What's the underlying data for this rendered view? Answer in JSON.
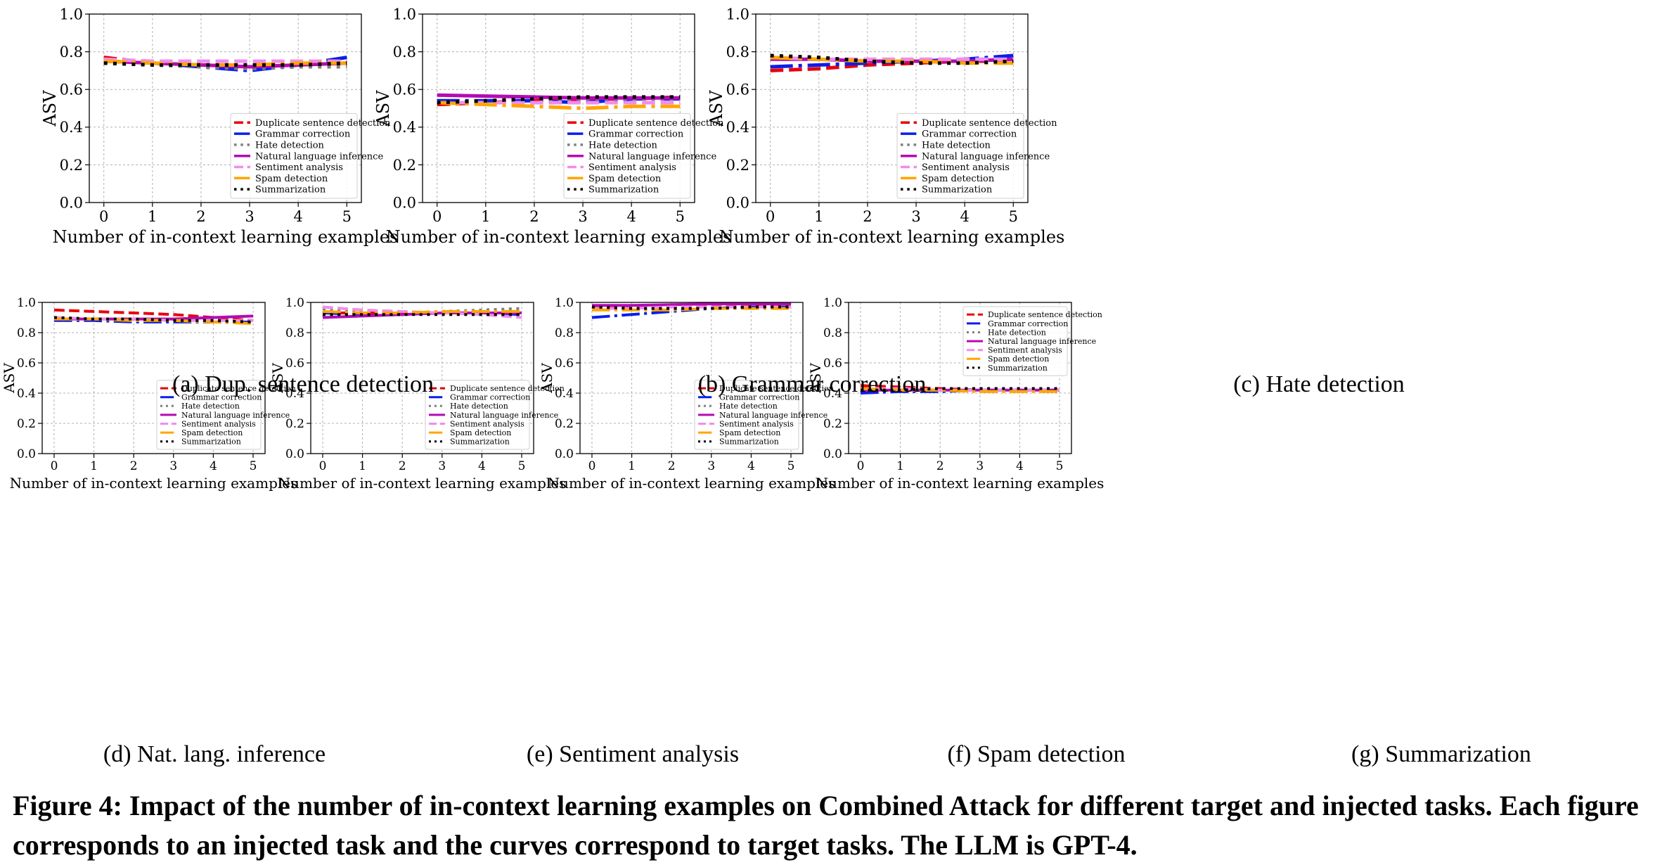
{
  "legend_labels": [
    "Duplicate sentence detection",
    "Grammar correction",
    "Hate detection",
    "Natural language inference",
    "Sentiment analysis",
    "Spam detection",
    "Summarization"
  ],
  "series_styles": [
    {
      "color": "#e8000b",
      "dash": "dashed"
    },
    {
      "color": "#0a1ee8",
      "dash": "dashdot"
    },
    {
      "color": "#7f7f7f",
      "dash": "dotted"
    },
    {
      "color": "#b30bb3",
      "dash": "solid"
    },
    {
      "color": "#f08cf0",
      "dash": "dashed"
    },
    {
      "color": "#ffa500",
      "dash": "dashdot"
    },
    {
      "color": "#000000",
      "dash": "dotted"
    }
  ],
  "figure_caption": "Figure 4: Impact of the number of in-context learning examples on Combined Attack for different target and injected tasks. Each figure corresponds to an injected task and the curves correspond to target tasks. The LLM is GPT-4.",
  "chart_data": [
    {
      "type": "line",
      "caption": "(a) Dup. sentence detection",
      "xlabel": "Number of in-context learning examples",
      "ylabel": "ASV",
      "x": [
        0,
        1,
        2,
        3,
        4,
        5
      ],
      "xlim": [
        -0.3,
        5.3
      ],
      "ylim": [
        0,
        1.0
      ],
      "yticks": [
        0.0,
        0.2,
        0.4,
        0.6,
        0.8,
        1.0
      ],
      "legend": "lower-right",
      "grid": true,
      "series": [
        {
          "name": "Duplicate sentence detection",
          "values": [
            0.77,
            0.74,
            0.73,
            0.72,
            0.73,
            0.74
          ]
        },
        {
          "name": "Grammar correction",
          "values": [
            0.75,
            0.74,
            0.72,
            0.7,
            0.73,
            0.77
          ]
        },
        {
          "name": "Hate detection",
          "values": [
            0.74,
            0.73,
            0.72,
            0.71,
            0.72,
            0.72
          ]
        },
        {
          "name": "Natural language inference",
          "values": [
            0.75,
            0.74,
            0.73,
            0.72,
            0.73,
            0.74
          ]
        },
        {
          "name": "Sentiment analysis",
          "values": [
            0.76,
            0.75,
            0.75,
            0.75,
            0.75,
            0.75
          ]
        },
        {
          "name": "Spam detection",
          "values": [
            0.75,
            0.74,
            0.73,
            0.73,
            0.74,
            0.74
          ]
        },
        {
          "name": "Summarization",
          "values": [
            0.74,
            0.73,
            0.73,
            0.73,
            0.73,
            0.74
          ]
        }
      ]
    },
    {
      "type": "line",
      "caption": "(b) Grammar correction",
      "xlabel": "Number of in-context learning examples",
      "ylabel": "ASV",
      "x": [
        0,
        1,
        2,
        3,
        4,
        5
      ],
      "xlim": [
        -0.3,
        5.3
      ],
      "ylim": [
        0,
        1.0
      ],
      "yticks": [
        0.0,
        0.2,
        0.4,
        0.6,
        0.8,
        1.0
      ],
      "legend": "lower-right",
      "grid": true,
      "series": [
        {
          "name": "Duplicate sentence detection",
          "values": [
            0.52,
            0.53,
            0.54,
            0.55,
            0.55,
            0.56
          ]
        },
        {
          "name": "Grammar correction",
          "values": [
            0.54,
            0.54,
            0.54,
            0.53,
            0.55,
            0.55
          ]
        },
        {
          "name": "Hate detection",
          "values": [
            0.53,
            0.54,
            0.54,
            0.55,
            0.55,
            0.55
          ]
        },
        {
          "name": "Natural language inference",
          "values": [
            0.57,
            0.565,
            0.56,
            0.555,
            0.555,
            0.555
          ]
        },
        {
          "name": "Sentiment analysis",
          "values": [
            0.53,
            0.53,
            0.53,
            0.53,
            0.53,
            0.53
          ]
        },
        {
          "name": "Spam detection",
          "values": [
            0.53,
            0.52,
            0.51,
            0.5,
            0.51,
            0.51
          ]
        },
        {
          "name": "Summarization",
          "values": [
            0.53,
            0.54,
            0.55,
            0.56,
            0.56,
            0.56
          ]
        }
      ]
    },
    {
      "type": "line",
      "caption": "(c) Hate detection",
      "xlabel": "Number of in-context learning examples",
      "ylabel": "ASV",
      "x": [
        0,
        1,
        2,
        3,
        4,
        5
      ],
      "xlim": [
        -0.3,
        5.3
      ],
      "ylim": [
        0,
        1.0
      ],
      "yticks": [
        0.0,
        0.2,
        0.4,
        0.6,
        0.8,
        1.0
      ],
      "legend": "lower-right",
      "grid": true,
      "series": [
        {
          "name": "Duplicate sentence detection",
          "values": [
            0.7,
            0.71,
            0.73,
            0.74,
            0.75,
            0.75
          ]
        },
        {
          "name": "Grammar correction",
          "values": [
            0.72,
            0.73,
            0.74,
            0.75,
            0.76,
            0.78
          ]
        },
        {
          "name": "Hate detection",
          "values": [
            0.77,
            0.76,
            0.75,
            0.75,
            0.75,
            0.75
          ]
        },
        {
          "name": "Natural language inference",
          "values": [
            0.76,
            0.76,
            0.75,
            0.75,
            0.75,
            0.76
          ]
        },
        {
          "name": "Sentiment analysis",
          "values": [
            0.77,
            0.76,
            0.76,
            0.76,
            0.76,
            0.76
          ]
        },
        {
          "name": "Spam detection",
          "values": [
            0.77,
            0.76,
            0.75,
            0.75,
            0.74,
            0.74
          ]
        },
        {
          "name": "Summarization",
          "values": [
            0.78,
            0.77,
            0.75,
            0.74,
            0.74,
            0.75
          ]
        }
      ]
    },
    {
      "type": "line",
      "caption": "(d) Nat. lang. inference",
      "xlabel": "Number of in-context learning examples",
      "ylabel": "ASV",
      "x": [
        0,
        1,
        2,
        3,
        4,
        5
      ],
      "xlim": [
        -0.3,
        5.3
      ],
      "ylim": [
        0,
        1.0
      ],
      "yticks": [
        0.0,
        0.2,
        0.4,
        0.6,
        0.8,
        1.0
      ],
      "legend": "lower-right",
      "grid": true,
      "series": [
        {
          "name": "Duplicate sentence detection",
          "values": [
            0.95,
            0.94,
            0.93,
            0.92,
            0.9,
            0.88
          ]
        },
        {
          "name": "Grammar correction",
          "values": [
            0.88,
            0.88,
            0.87,
            0.87,
            0.87,
            0.87
          ]
        },
        {
          "name": "Hate detection",
          "values": [
            0.89,
            0.89,
            0.88,
            0.88,
            0.88,
            0.88
          ]
        },
        {
          "name": "Natural language inference",
          "values": [
            0.89,
            0.89,
            0.89,
            0.89,
            0.9,
            0.91
          ]
        },
        {
          "name": "Sentiment analysis",
          "values": [
            0.9,
            0.89,
            0.89,
            0.88,
            0.88,
            0.88
          ]
        },
        {
          "name": "Spam detection",
          "values": [
            0.89,
            0.89,
            0.88,
            0.88,
            0.87,
            0.86
          ]
        },
        {
          "name": "Summarization",
          "values": [
            0.9,
            0.89,
            0.89,
            0.88,
            0.88,
            0.87
          ]
        }
      ]
    },
    {
      "type": "line",
      "caption": "(e) Sentiment analysis",
      "xlabel": "Number of in-context learning examples",
      "ylabel": "ASV",
      "x": [
        0,
        1,
        2,
        3,
        4,
        5
      ],
      "xlim": [
        -0.3,
        5.3
      ],
      "ylim": [
        0,
        1.0
      ],
      "yticks": [
        0.0,
        0.2,
        0.4,
        0.6,
        0.8,
        1.0
      ],
      "legend": "lower-right",
      "grid": true,
      "series": [
        {
          "name": "Duplicate sentence detection",
          "values": [
            0.93,
            0.93,
            0.93,
            0.93,
            0.93,
            0.93
          ]
        },
        {
          "name": "Grammar correction",
          "values": [
            0.93,
            0.92,
            0.92,
            0.93,
            0.93,
            0.92
          ]
        },
        {
          "name": "Hate detection",
          "values": [
            0.95,
            0.94,
            0.93,
            0.94,
            0.95,
            0.96
          ]
        },
        {
          "name": "Natural language inference",
          "values": [
            0.9,
            0.91,
            0.92,
            0.93,
            0.93,
            0.93
          ]
        },
        {
          "name": "Sentiment analysis",
          "values": [
            0.97,
            0.95,
            0.94,
            0.93,
            0.92,
            0.9
          ]
        },
        {
          "name": "Spam detection",
          "values": [
            0.94,
            0.93,
            0.93,
            0.94,
            0.94,
            0.94
          ]
        },
        {
          "name": "Summarization",
          "values": [
            0.92,
            0.92,
            0.92,
            0.92,
            0.92,
            0.92
          ]
        }
      ]
    },
    {
      "type": "line",
      "caption": "(f) Spam detection",
      "xlabel": "Number of in-context learning examples",
      "ylabel": "ASV",
      "x": [
        0,
        1,
        2,
        3,
        4,
        5
      ],
      "xlim": [
        -0.3,
        5.3
      ],
      "ylim": [
        0,
        1.0
      ],
      "yticks": [
        0.0,
        0.2,
        0.4,
        0.6,
        0.8,
        1.0
      ],
      "legend": "lower-right",
      "grid": true,
      "series": [
        {
          "name": "Duplicate sentence detection",
          "values": [
            0.97,
            0.97,
            0.97,
            0.98,
            0.98,
            0.98
          ]
        },
        {
          "name": "Grammar correction",
          "values": [
            0.9,
            0.92,
            0.94,
            0.96,
            0.97,
            0.97
          ]
        },
        {
          "name": "Hate detection",
          "values": [
            0.97,
            0.97,
            0.97,
            0.97,
            0.97,
            0.97
          ]
        },
        {
          "name": "Natural language inference",
          "values": [
            0.98,
            0.98,
            0.985,
            0.99,
            0.99,
            0.99
          ]
        },
        {
          "name": "Sentiment analysis",
          "values": [
            0.96,
            0.96,
            0.97,
            0.97,
            0.97,
            0.97
          ]
        },
        {
          "name": "Spam detection",
          "values": [
            0.95,
            0.95,
            0.95,
            0.96,
            0.96,
            0.96
          ]
        },
        {
          "name": "Summarization",
          "values": [
            0.97,
            0.96,
            0.96,
            0.96,
            0.97,
            0.97
          ]
        }
      ]
    },
    {
      "type": "line",
      "caption": "(g) Summarization",
      "xlabel": "Number of in-context learning examples",
      "ylabel": "ASV",
      "x": [
        0,
        1,
        2,
        3,
        4,
        5
      ],
      "xlim": [
        -0.3,
        5.3
      ],
      "ylim": [
        0,
        1.0
      ],
      "yticks": [
        0.0,
        0.2,
        0.4,
        0.6,
        0.8,
        1.0
      ],
      "legend": "upper-right",
      "grid": true,
      "series": [
        {
          "name": "Duplicate sentence detection",
          "values": [
            0.45,
            0.44,
            0.43,
            0.42,
            0.42,
            0.42
          ]
        },
        {
          "name": "Grammar correction",
          "values": [
            0.4,
            0.41,
            0.41,
            0.42,
            0.42,
            0.42
          ]
        },
        {
          "name": "Hate detection",
          "values": [
            0.43,
            0.43,
            0.43,
            0.42,
            0.42,
            0.42
          ]
        },
        {
          "name": "Natural language inference",
          "values": [
            0.42,
            0.42,
            0.42,
            0.42,
            0.42,
            0.42
          ]
        },
        {
          "name": "Sentiment analysis",
          "values": [
            0.43,
            0.43,
            0.42,
            0.42,
            0.42,
            0.42
          ]
        },
        {
          "name": "Spam detection",
          "values": [
            0.43,
            0.42,
            0.42,
            0.41,
            0.41,
            0.41
          ]
        },
        {
          "name": "Summarization",
          "values": [
            0.42,
            0.42,
            0.43,
            0.43,
            0.43,
            0.43
          ]
        }
      ]
    }
  ]
}
